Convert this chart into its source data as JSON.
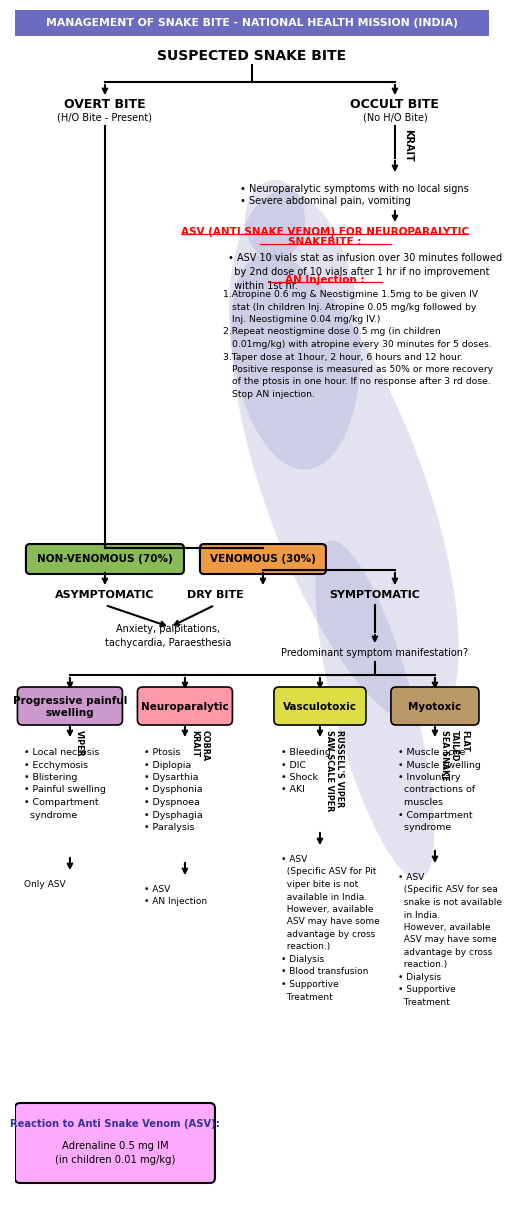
{
  "title": "MANAGEMENT OF SNAKE BITE - NATIONAL HEALTH MISSION (INDIA)",
  "title_bg": "#6B6BBF",
  "title_color": "#FFFFFF",
  "bg_color": "#FFFFFF",
  "snake_color": "#9999CC",
  "header_node": "SUSPECTED SNAKE BITE",
  "overt_label": "OVERT BITE",
  "overt_sub": "(H/O Bite - Present)",
  "occult_label": "OCCULT BITE",
  "occult_sub": "(No H/O Bite)",
  "krait_label": "KRAIT",
  "occult_bullet1": "• Neuroparalytic symptoms with no local signs",
  "occult_bullet2": "• Severe abdominal pain, vomiting",
  "asv_title_line1": "ASV (ANTI SNAKE VENOM) FOR NEUROPARALYTIC",
  "asv_title_line2": "SNAKEBITE :",
  "asv_bullet": "• ASV 10 vials stat as infusion over 30 minutes followed\n  by 2nd dose of 10 vials after 1 hr if no improvement\n  within 1st hr.",
  "an_title": "AN Injection :",
  "an_item1_bold": "Atropine 0.6 mg",
  "an_item1_rest": " & Neostigmine 1.5mg to be given IV\n   stat (In children Inj. Atropine 0.05 mg/kg followed by\n   Inj. Neostigmine 0.04 mg/kg IV.)",
  "an_item2_bold": "Repeat neostigmine",
  "an_item2_rest": " dose 0.5 mg (in children\n   0.01mg/kg) with atropine every 30 minutes for 5 doses.",
  "an_item3_bold": "Taper dose",
  "an_item3_rest": " at 1hour, 2 hour, 6 hours and 12 hour.\n   Positive response is measured as 50% or more recovery\n   of the ptosis in one hour. If no response after 3 rd dose.\n   Stop AN injection.",
  "nonvenom_label": "NON-VENOMOUS (70%)",
  "nonvenom_color": "#88BB55",
  "venom_label": "VENOMOUS (30%)",
  "venom_color": "#EE9944",
  "asymp_label": "ASYMPTOMATIC",
  "dry_label": "DRY BITE",
  "symp_label": "SYMPTOMATIC",
  "dry_sub": "Anxiety, palpitations,\ntachycardia, Paraesthesia",
  "symp_q": "Predominant symptom manifestation?",
  "prog_label": "Progressive painful\nswelling",
  "prog_color": "#CC99CC",
  "neuro_label": "Neuroparalytic",
  "neuro_color": "#FF99AA",
  "vasco_label": "Vasculotoxic",
  "vasco_color": "#DDDD44",
  "myo_label": "Myotoxic",
  "myo_color": "#BB9966",
  "viper_label": "VIPER",
  "cobra_label": "COBRA\nKRAIT",
  "russell_label": "RUSSELL'S VIPER\nSAW SCALE VIPER",
  "flat_label": "FLAT\nTAILED\nSEA SNAKE",
  "prog_bullets": "• Local necrosis\n• Ecchymosis\n• Blistering\n• Painful swelling\n• Compartment\n  syndrome",
  "neuro_bullets": "• Ptosis\n• Diplopia\n• Dysarthia\n• Dysphonia\n• Dyspnoea\n• Dysphagia\n• Paralysis",
  "vasco_bullets": "• Bleeding\n• DIC\n• Shock\n• AKI",
  "myo_bullets": "• Muscle ache\n• Muscle swelling\n• Involuntary\n  contractions of\n  muscles\n• Compartment\n  syndrome",
  "prog_treat": "Only ASV",
  "neuro_treat": "• ASV\n• AN Injection",
  "vasco_treat": "• ASV\n  (Specific ASV for Pit\n  viper bite is not\n  available in India.\n  However, available\n  ASV may have some\n  advantage by cross\n  reaction.)\n• Dialysis\n• Blood transfusion\n• Supportive\n  Treatment",
  "myo_treat": "• ASV\n  (Specific ASV for sea\n  snake is not available\n  in India.\n  However, available\n  ASV may have some\n  advantage by cross\n  reaction.)\n• Dialysis\n• Supportive\n  Treatment",
  "reaction_title": "Reaction to Anti Snake Venom (ASV):",
  "reaction_body": "Adrenaline 0.5 mg IM\n(in children 0.01 mg/kg)",
  "reaction_color": "#FFAAFF"
}
